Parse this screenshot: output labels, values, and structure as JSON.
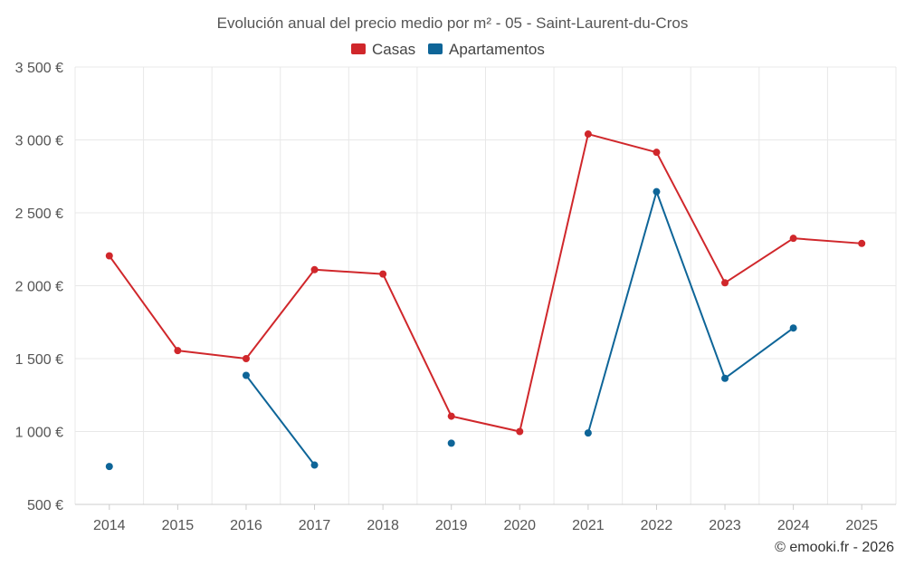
{
  "chart_data": {
    "type": "line",
    "title": "Evolución anual del precio medio por m² - 05 - Saint-Laurent-du-Cros",
    "categories": [
      "2014",
      "2015",
      "2016",
      "2017",
      "2018",
      "2019",
      "2020",
      "2021",
      "2022",
      "2023",
      "2024",
      "2025"
    ],
    "y_tick_labels": [
      "500 €",
      "1 000 €",
      "1 500 €",
      "2 000 €",
      "2 500 €",
      "3 000 €",
      "3 500 €"
    ],
    "y_ticks": [
      500,
      1000,
      1500,
      2000,
      2500,
      3000,
      3500
    ],
    "ylim": [
      500,
      3500
    ],
    "grid": true,
    "legend_position": "top-center",
    "series": [
      {
        "name": "Casas",
        "color": "#d0272b",
        "values": [
          2205,
          1555,
          1500,
          2110,
          2080,
          1105,
          1000,
          3040,
          2915,
          2020,
          2325,
          2290
        ]
      },
      {
        "name": "Apartamentos",
        "color": "#0e6598",
        "values": [
          760,
          null,
          1385,
          770,
          null,
          920,
          null,
          990,
          2645,
          1365,
          1710,
          null
        ]
      }
    ],
    "credit": "© emooki.fr - 2026"
  }
}
